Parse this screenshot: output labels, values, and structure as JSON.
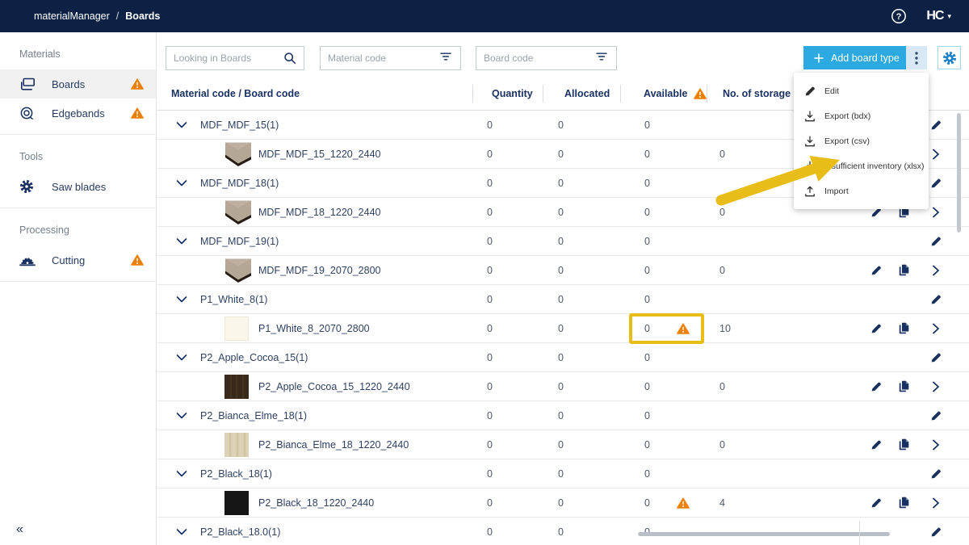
{
  "topbar": {
    "app": "materialManager",
    "separator": "/",
    "page": "Boards",
    "logo_text": "HC",
    "logo_caret": "▾"
  },
  "sidebar": {
    "collapse_glyph": "«",
    "sections": [
      {
        "label": "Materials",
        "items": [
          {
            "label": "Boards",
            "icon": "boards-icon",
            "warning": true,
            "active": true
          },
          {
            "label": "Edgebands",
            "icon": "edgebands-icon",
            "warning": true,
            "active": false
          }
        ]
      },
      {
        "label": "Tools",
        "items": [
          {
            "label": "Saw blades",
            "icon": "saw-blade-icon",
            "warning": false,
            "active": false
          }
        ]
      },
      {
        "label": "Processing",
        "items": [
          {
            "label": "Cutting",
            "icon": "cutting-icon",
            "warning": true,
            "active": false
          }
        ]
      }
    ]
  },
  "filters": {
    "search": {
      "placeholder": "Looking in Boards"
    },
    "material_code": {
      "placeholder": "Material code"
    },
    "board_code": {
      "placeholder": "Board code"
    }
  },
  "toolbar": {
    "add_button": "Add board type"
  },
  "menu": {
    "items": [
      {
        "label": "Edit",
        "icon": "edit-icon"
      },
      {
        "label": "Export (bdx)",
        "icon": "download-icon"
      },
      {
        "label": "Export (csv)",
        "icon": "download-icon"
      },
      {
        "label": "Insufficient inventory (xlsx)",
        "icon": "download-icon"
      },
      {
        "label": "Import",
        "icon": "upload-icon"
      }
    ]
  },
  "table": {
    "columns": {
      "name": "Material code / Board code",
      "quantity": "Quantity",
      "allocated": "Allocated",
      "available": "Available",
      "available_warning": true,
      "storage": "No. of storage r"
    },
    "rows": [
      {
        "type": "group",
        "name": "MDF_MDF_15(1)",
        "quantity": "0",
        "allocated": "0",
        "available": "0",
        "storage": "",
        "available_warning": false
      },
      {
        "type": "child",
        "name": "MDF_MDF_15_1220_2440",
        "thumb": "mdf3d",
        "quantity": "0",
        "allocated": "0",
        "available": "0",
        "storage": "0",
        "available_warning": false
      },
      {
        "type": "group",
        "name": "MDF_MDF_18(1)",
        "quantity": "0",
        "allocated": "0",
        "available": "0",
        "storage": "",
        "available_warning": false
      },
      {
        "type": "child",
        "name": "MDF_MDF_18_1220_2440",
        "thumb": "mdf3d",
        "quantity": "0",
        "allocated": "0",
        "available": "0",
        "storage": "0",
        "available_warning": false
      },
      {
        "type": "group",
        "name": "MDF_MDF_19(1)",
        "quantity": "0",
        "allocated": "0",
        "available": "0",
        "storage": "",
        "available_warning": false
      },
      {
        "type": "child",
        "name": "MDF_MDF_19_2070_2800",
        "thumb": "mdf3d",
        "quantity": "0",
        "allocated": "0",
        "available": "0",
        "storage": "0",
        "available_warning": false
      },
      {
        "type": "group",
        "name": "P1_White_8(1)",
        "quantity": "0",
        "allocated": "0",
        "available": "0",
        "storage": "",
        "available_warning": false
      },
      {
        "type": "child",
        "name": "P1_White_8_2070_2800",
        "thumb": "white-flat",
        "quantity": "0",
        "allocated": "0",
        "available": "0",
        "storage": "10",
        "available_warning": true,
        "highlighted": true
      },
      {
        "type": "group",
        "name": "P2_Apple_Cocoa_15(1)",
        "quantity": "0",
        "allocated": "0",
        "available": "0",
        "storage": "",
        "available_warning": false
      },
      {
        "type": "child",
        "name": "P2_Apple_Cocoa_15_1220_2440",
        "thumb": "dark-wood",
        "quantity": "0",
        "allocated": "0",
        "available": "0",
        "storage": "0",
        "available_warning": false
      },
      {
        "type": "group",
        "name": "P2_Bianca_Elme_18(1)",
        "quantity": "0",
        "allocated": "0",
        "available": "0",
        "storage": "",
        "available_warning": false
      },
      {
        "type": "child",
        "name": "P2_Bianca_Elme_18_1220_2440",
        "thumb": "light-wood",
        "quantity": "0",
        "allocated": "0",
        "available": "0",
        "storage": "0",
        "available_warning": false
      },
      {
        "type": "group",
        "name": "P2_Black_18(1)",
        "quantity": "0",
        "allocated": "0",
        "available": "0",
        "storage": "",
        "available_warning": false
      },
      {
        "type": "child",
        "name": "P2_Black_18_1220_2440",
        "thumb": "black",
        "quantity": "0",
        "allocated": "0",
        "available": "0",
        "storage": "4",
        "available_warning": true
      },
      {
        "type": "group",
        "name": "P2_Black_18.0(1)",
        "quantity": "0",
        "allocated": "0",
        "available": "0",
        "storage": "",
        "available_warning": false
      }
    ]
  },
  "annotations": {
    "arrow_points_to": "Insufficient inventory (xlsx)",
    "highlight_color": "#E9BD17"
  },
  "colors": {
    "topbar_bg": "#0C2143",
    "accent_blue": "#2BA9E0",
    "navy": "#17305F",
    "warning_orange": "#EE7F00",
    "annotation_yellow": "#E9BD17"
  }
}
